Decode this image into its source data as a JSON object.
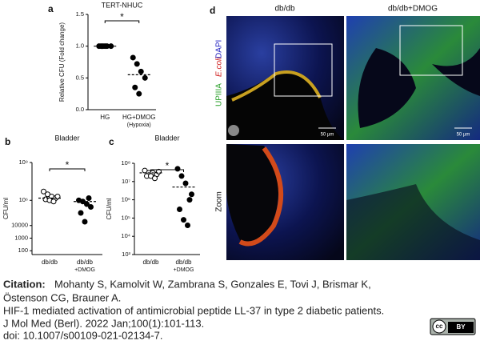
{
  "chart_data": [
    {
      "type": "dot",
      "panel": "a",
      "title": "TERT-NHUC",
      "ylabel": "Relative CFU (Fold change)",
      "categories": [
        [
          "HG"
        ],
        [
          "HG+DMOG",
          "(Hypoxia)"
        ]
      ],
      "points": [
        [
          1.0,
          1.0,
          1.0,
          1.0,
          1.0,
          1.0
        ],
        [
          0.82,
          0.72,
          0.6,
          0.5,
          0.35,
          0.25
        ]
      ],
      "means": [
        1.0,
        0.55
      ],
      "markers": [
        "filled",
        "filled"
      ],
      "ylim": [
        0,
        1.5
      ],
      "yticks": [
        {
          "value": 0,
          "label": "0.0"
        },
        {
          "value": 0.5,
          "label": "0.5"
        },
        {
          "value": 1,
          "label": "1.0"
        },
        {
          "value": 1.5,
          "label": "1.5"
        }
      ],
      "log_y": false,
      "annotation": "*"
    },
    {
      "type": "dot",
      "panel": "b",
      "title": "Bladder",
      "ylabel": "CFU/ml",
      "categories": [
        [
          "db/db"
        ],
        [
          "db/db",
          "+DMOG"
        ]
      ],
      "points": [
        [
          5000000,
          3000000,
          2000000,
          1500000,
          1200000,
          1000000,
          800000,
          2000000
        ],
        [
          1000000,
          800000,
          500000,
          300000,
          100000,
          20000,
          1500000
        ]
      ],
      "means": [
        1500000,
        800000
      ],
      "markers": [
        "open",
        "filled"
      ],
      "ylim": [
        50,
        1000000000
      ],
      "yticks": [
        100,
        1000,
        10000,
        {
          "value": 1000000,
          "label": "10⁶"
        },
        {
          "value": 1000000000,
          "label": "10⁹"
        }
      ],
      "log_y": true,
      "annotation": "*"
    },
    {
      "type": "dot",
      "panel": "c",
      "title": "Bladder",
      "ylabel": "CFU/ml",
      "categories": [
        [
          "db/db"
        ],
        [
          "db/db",
          "+DMOG"
        ]
      ],
      "points": [
        [
          40000000,
          30000000,
          30000000,
          25000000,
          20000000,
          20000000,
          15000000,
          35000000
        ],
        [
          50000000,
          20000000,
          8000000,
          1000000,
          300000,
          80000,
          40000,
          2000000
        ]
      ],
      "means": [
        30000000,
        5000000
      ],
      "markers": [
        "open",
        "filled"
      ],
      "ylim": [
        1000,
        100000000
      ],
      "yticks": [
        {
          "value": 1000,
          "label": "10³"
        },
        {
          "value": 10000,
          "label": "10⁴"
        },
        {
          "value": 100000,
          "label": "10⁵"
        },
        {
          "value": 1000000,
          "label": "10⁶"
        },
        {
          "value": 10000000,
          "label": "10⁷"
        },
        {
          "value": 100000000,
          "label": "10⁸"
        }
      ],
      "log_y": true,
      "annotation": "*"
    }
  ],
  "panel_d": {
    "label": "d",
    "columns": [
      "db/db",
      "db/db+DMOG"
    ],
    "stain": [
      "UPIIIA",
      "E.coli",
      "DAPI"
    ],
    "row_label": "Zoom",
    "scale_bars": [
      "50 µm",
      "50 µm"
    ]
  },
  "citation": {
    "lead": "Citation:",
    "lines": [
      "Mohanty S, Kamolvit W, Zambrana S, Gonzales E, Tovi J, Brismar K,",
      "Östenson CG, Brauner A.",
      "HIF-1 mediated activation of antimicrobial peptide LL-37 in type 2 diabetic patients.",
      "J Mol Med (Berl). 2022 Jan;100(1):101-113.",
      "doi: 10.1007/s00109-021-02134-7."
    ],
    "license": [
      "cc",
      "BY"
    ]
  }
}
